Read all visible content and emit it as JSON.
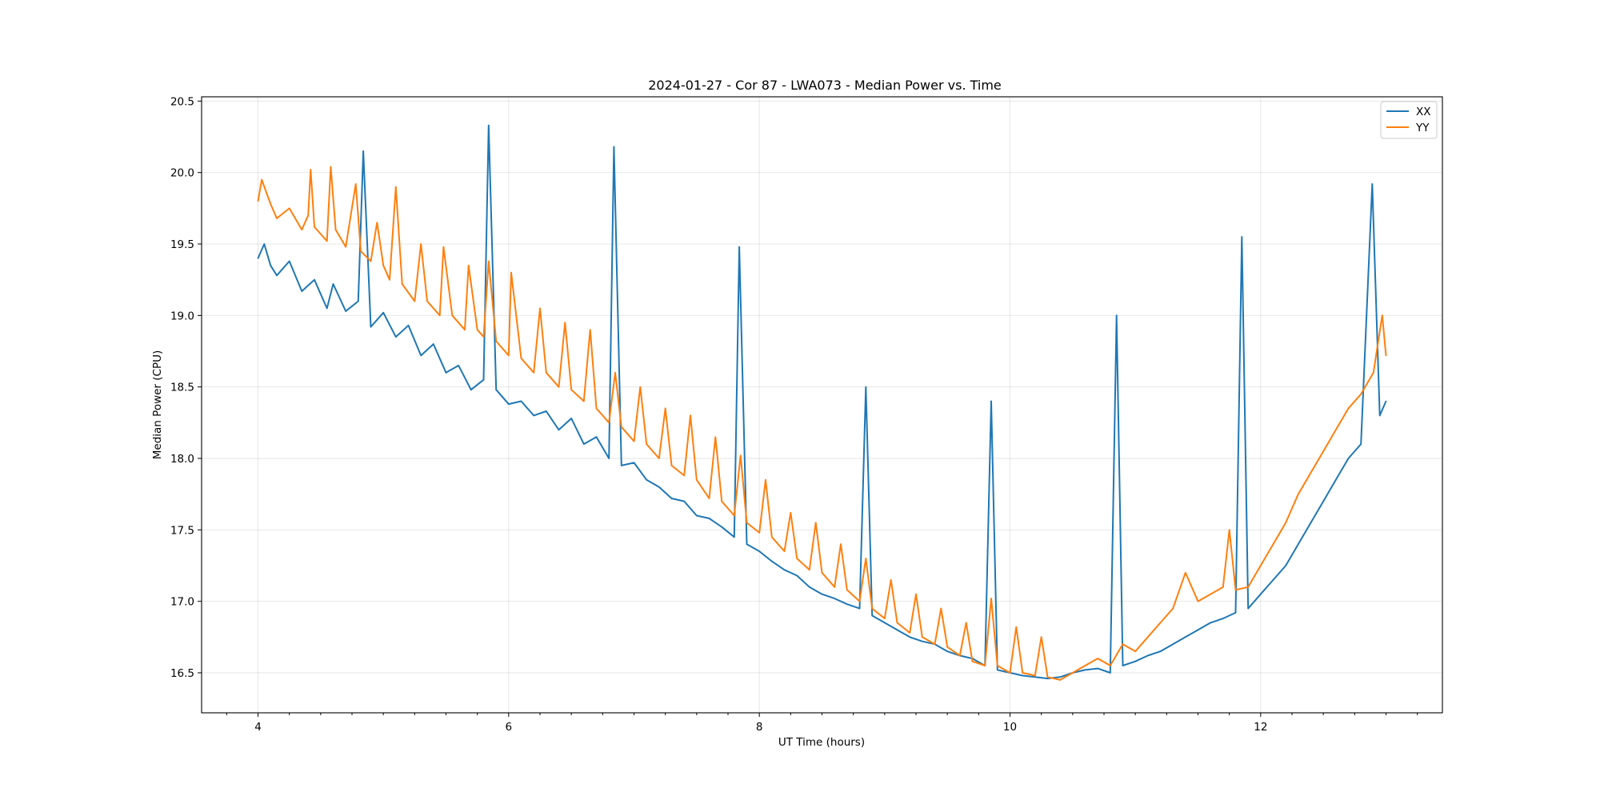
{
  "chart_data": {
    "type": "line",
    "title": "2024-01-27 - Cor 87 - LWA073 - Median Power vs. Time",
    "xlabel": "UT Time (hours)",
    "ylabel": "Median Power (CPU)",
    "xlim": [
      3.55,
      13.45
    ],
    "ylim": [
      16.22,
      20.53
    ],
    "xticks": [
      4,
      6,
      8,
      10,
      12
    ],
    "xtick_labels": [
      "4",
      "6",
      "8",
      "10",
      "12"
    ],
    "yticks": [
      16.5,
      17.0,
      17.5,
      18.0,
      18.5,
      19.0,
      19.5,
      20.0,
      20.5
    ],
    "ytick_labels": [
      "16.5",
      "17.0",
      "17.5",
      "18.0",
      "18.5",
      "19.0",
      "19.5",
      "20.0",
      "20.5"
    ],
    "x_minor_step": 0.25,
    "grid": true,
    "legend_position": "upper right",
    "series": [
      {
        "name": "XX",
        "color": "#1f77b4",
        "x": [
          4.0,
          4.05,
          4.1,
          4.15,
          4.25,
          4.35,
          4.45,
          4.55,
          4.6,
          4.7,
          4.8,
          4.84,
          4.9,
          5.0,
          5.1,
          5.2,
          5.3,
          5.4,
          5.5,
          5.6,
          5.7,
          5.8,
          5.84,
          5.9,
          6.0,
          6.1,
          6.2,
          6.3,
          6.4,
          6.5,
          6.6,
          6.7,
          6.8,
          6.84,
          6.9,
          7.0,
          7.1,
          7.2,
          7.3,
          7.4,
          7.5,
          7.6,
          7.7,
          7.8,
          7.84,
          7.9,
          8.0,
          8.1,
          8.2,
          8.3,
          8.4,
          8.5,
          8.6,
          8.7,
          8.8,
          8.85,
          8.9,
          9.0,
          9.1,
          9.2,
          9.3,
          9.4,
          9.5,
          9.6,
          9.7,
          9.8,
          9.85,
          9.9,
          10.0,
          10.1,
          10.2,
          10.3,
          10.4,
          10.5,
          10.6,
          10.7,
          10.8,
          10.85,
          10.9,
          11.0,
          11.1,
          11.2,
          11.3,
          11.4,
          11.5,
          11.6,
          11.7,
          11.8,
          11.85,
          11.9,
          12.0,
          12.1,
          12.2,
          12.3,
          12.4,
          12.5,
          12.6,
          12.7,
          12.8,
          12.89,
          12.95,
          13.0
        ],
        "y": [
          19.4,
          19.5,
          19.35,
          19.28,
          19.38,
          19.17,
          19.25,
          19.05,
          19.22,
          19.03,
          19.1,
          20.15,
          18.92,
          19.02,
          18.85,
          18.93,
          18.72,
          18.8,
          18.6,
          18.65,
          18.48,
          18.55,
          20.33,
          18.48,
          18.38,
          18.4,
          18.3,
          18.33,
          18.2,
          18.28,
          18.1,
          18.15,
          18.0,
          20.18,
          17.95,
          17.97,
          17.85,
          17.8,
          17.72,
          17.7,
          17.6,
          17.58,
          17.52,
          17.45,
          19.48,
          17.4,
          17.35,
          17.28,
          17.22,
          17.18,
          17.1,
          17.05,
          17.02,
          16.98,
          16.95,
          18.5,
          16.9,
          16.85,
          16.8,
          16.75,
          16.72,
          16.7,
          16.65,
          16.62,
          16.6,
          16.55,
          18.4,
          16.52,
          16.5,
          16.48,
          16.47,
          16.46,
          16.47,
          16.5,
          16.52,
          16.53,
          16.5,
          19.0,
          16.55,
          16.58,
          16.62,
          16.65,
          16.7,
          16.75,
          16.8,
          16.85,
          16.88,
          16.92,
          19.55,
          16.95,
          17.05,
          17.15,
          17.25,
          17.4,
          17.55,
          17.7,
          17.85,
          18.0,
          18.1,
          19.92,
          18.3,
          18.4
        ]
      },
      {
        "name": "YY",
        "color": "#ff7f0e",
        "x": [
          4.0,
          4.03,
          4.1,
          4.15,
          4.25,
          4.35,
          4.4,
          4.42,
          4.45,
          4.55,
          4.58,
          4.62,
          4.7,
          4.78,
          4.82,
          4.9,
          4.95,
          5.0,
          5.05,
          5.1,
          5.15,
          5.25,
          5.3,
          5.35,
          5.45,
          5.48,
          5.55,
          5.65,
          5.68,
          5.75,
          5.8,
          5.84,
          5.9,
          6.0,
          6.02,
          6.1,
          6.2,
          6.25,
          6.3,
          6.4,
          6.45,
          6.5,
          6.6,
          6.65,
          6.7,
          6.8,
          6.85,
          6.9,
          7.0,
          7.05,
          7.1,
          7.2,
          7.25,
          7.3,
          7.4,
          7.45,
          7.5,
          7.6,
          7.65,
          7.7,
          7.8,
          7.85,
          7.9,
          8.0,
          8.05,
          8.1,
          8.2,
          8.25,
          8.3,
          8.4,
          8.45,
          8.5,
          8.6,
          8.65,
          8.7,
          8.8,
          8.85,
          8.9,
          9.0,
          9.05,
          9.1,
          9.2,
          9.25,
          9.3,
          9.4,
          9.45,
          9.5,
          9.6,
          9.65,
          9.7,
          9.8,
          9.85,
          9.9,
          10.0,
          10.05,
          10.1,
          10.2,
          10.25,
          10.3,
          10.4,
          10.5,
          10.6,
          10.7,
          10.8,
          10.9,
          11.0,
          11.1,
          11.2,
          11.3,
          11.4,
          11.5,
          11.6,
          11.7,
          11.75,
          11.8,
          11.9,
          12.0,
          12.1,
          12.2,
          12.3,
          12.4,
          12.5,
          12.6,
          12.7,
          12.8,
          12.9,
          12.97,
          13.0
        ],
        "y": [
          19.8,
          19.95,
          19.78,
          19.68,
          19.75,
          19.6,
          19.7,
          20.02,
          19.62,
          19.52,
          20.04,
          19.6,
          19.48,
          19.92,
          19.45,
          19.38,
          19.65,
          19.35,
          19.25,
          19.9,
          19.22,
          19.1,
          19.5,
          19.1,
          19.0,
          19.48,
          19.0,
          18.9,
          19.35,
          18.9,
          18.85,
          19.38,
          18.82,
          18.72,
          19.3,
          18.7,
          18.6,
          19.05,
          18.6,
          18.5,
          18.95,
          18.48,
          18.4,
          18.9,
          18.35,
          18.25,
          18.6,
          18.22,
          18.12,
          18.5,
          18.1,
          18.0,
          18.35,
          17.95,
          17.88,
          18.3,
          17.85,
          17.72,
          18.15,
          17.7,
          17.6,
          18.02,
          17.55,
          17.48,
          17.85,
          17.45,
          17.35,
          17.62,
          17.3,
          17.22,
          17.55,
          17.2,
          17.1,
          17.4,
          17.08,
          17.0,
          17.3,
          16.95,
          16.88,
          17.15,
          16.85,
          16.78,
          17.05,
          16.75,
          16.7,
          16.95,
          16.68,
          16.62,
          16.85,
          16.58,
          16.55,
          17.02,
          16.55,
          16.5,
          16.82,
          16.5,
          16.48,
          16.75,
          16.47,
          16.45,
          16.5,
          16.55,
          16.6,
          16.55,
          16.7,
          16.65,
          16.75,
          16.85,
          16.95,
          17.2,
          17.0,
          17.05,
          17.1,
          17.5,
          17.08,
          17.1,
          17.25,
          17.4,
          17.55,
          17.75,
          17.9,
          18.05,
          18.2,
          18.35,
          18.45,
          18.6,
          19.0,
          18.72
        ]
      }
    ]
  }
}
